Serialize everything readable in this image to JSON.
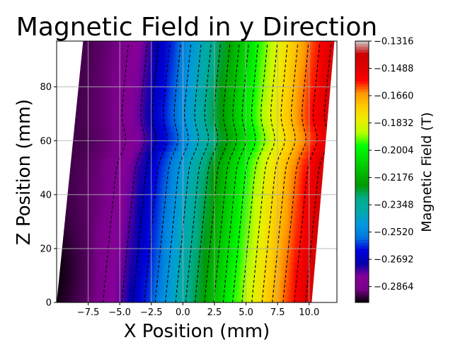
{
  "chart_data": {
    "type": "heatmap",
    "title": "Magnetic Field in y Direction",
    "xlabel": "X Position (mm)",
    "ylabel": "Z Position (mm)",
    "colorbar_label": "Magnetic Field (T)",
    "xlim": [
      -10,
      12.2
    ],
    "ylim": [
      0,
      97
    ],
    "xticks": [
      -7.5,
      -5.0,
      -2.5,
      0.0,
      2.5,
      5.0,
      7.5,
      10.0
    ],
    "xtick_labels": [
      "−7.5",
      "−5.0",
      "−2.5",
      "0.0",
      "2.5",
      "5.0",
      "7.5",
      "10.0"
    ],
    "yticks": [
      0,
      20,
      40,
      60,
      80
    ],
    "ytick_labels": [
      "0",
      "20",
      "40",
      "60",
      "80"
    ],
    "grid": true,
    "colorbar_range": [
      -0.2964,
      -0.1316
    ],
    "colorbar_ticks": [
      -0.1316,
      -0.1488,
      -0.166,
      -0.1832,
      -0.2004,
      -0.2176,
      -0.2348,
      -0.252,
      -0.2692,
      -0.2864
    ],
    "colorbar_tick_labels": [
      "−0.1316",
      "−0.1488",
      "−0.1660",
      "−0.1832",
      "−0.2004",
      "−0.2176",
      "−0.2348",
      "−0.2520",
      "−0.2692",
      "−0.2864"
    ],
    "colormap": "nipy_spectral",
    "data_region": {
      "bottom_x_range": [
        -10,
        10.2
      ],
      "top_x_range": [
        -7.9,
        12.0
      ]
    },
    "field_profile": {
      "x": [
        -10,
        -7.5,
        -5,
        -2.5,
        0,
        2.5,
        5,
        7.5,
        10,
        12
      ],
      "By": [
        -0.292,
        -0.289,
        -0.278,
        -0.258,
        -0.236,
        -0.212,
        -0.188,
        -0.166,
        -0.146,
        -0.134
      ]
    },
    "contour_lines": "dashed black"
  }
}
